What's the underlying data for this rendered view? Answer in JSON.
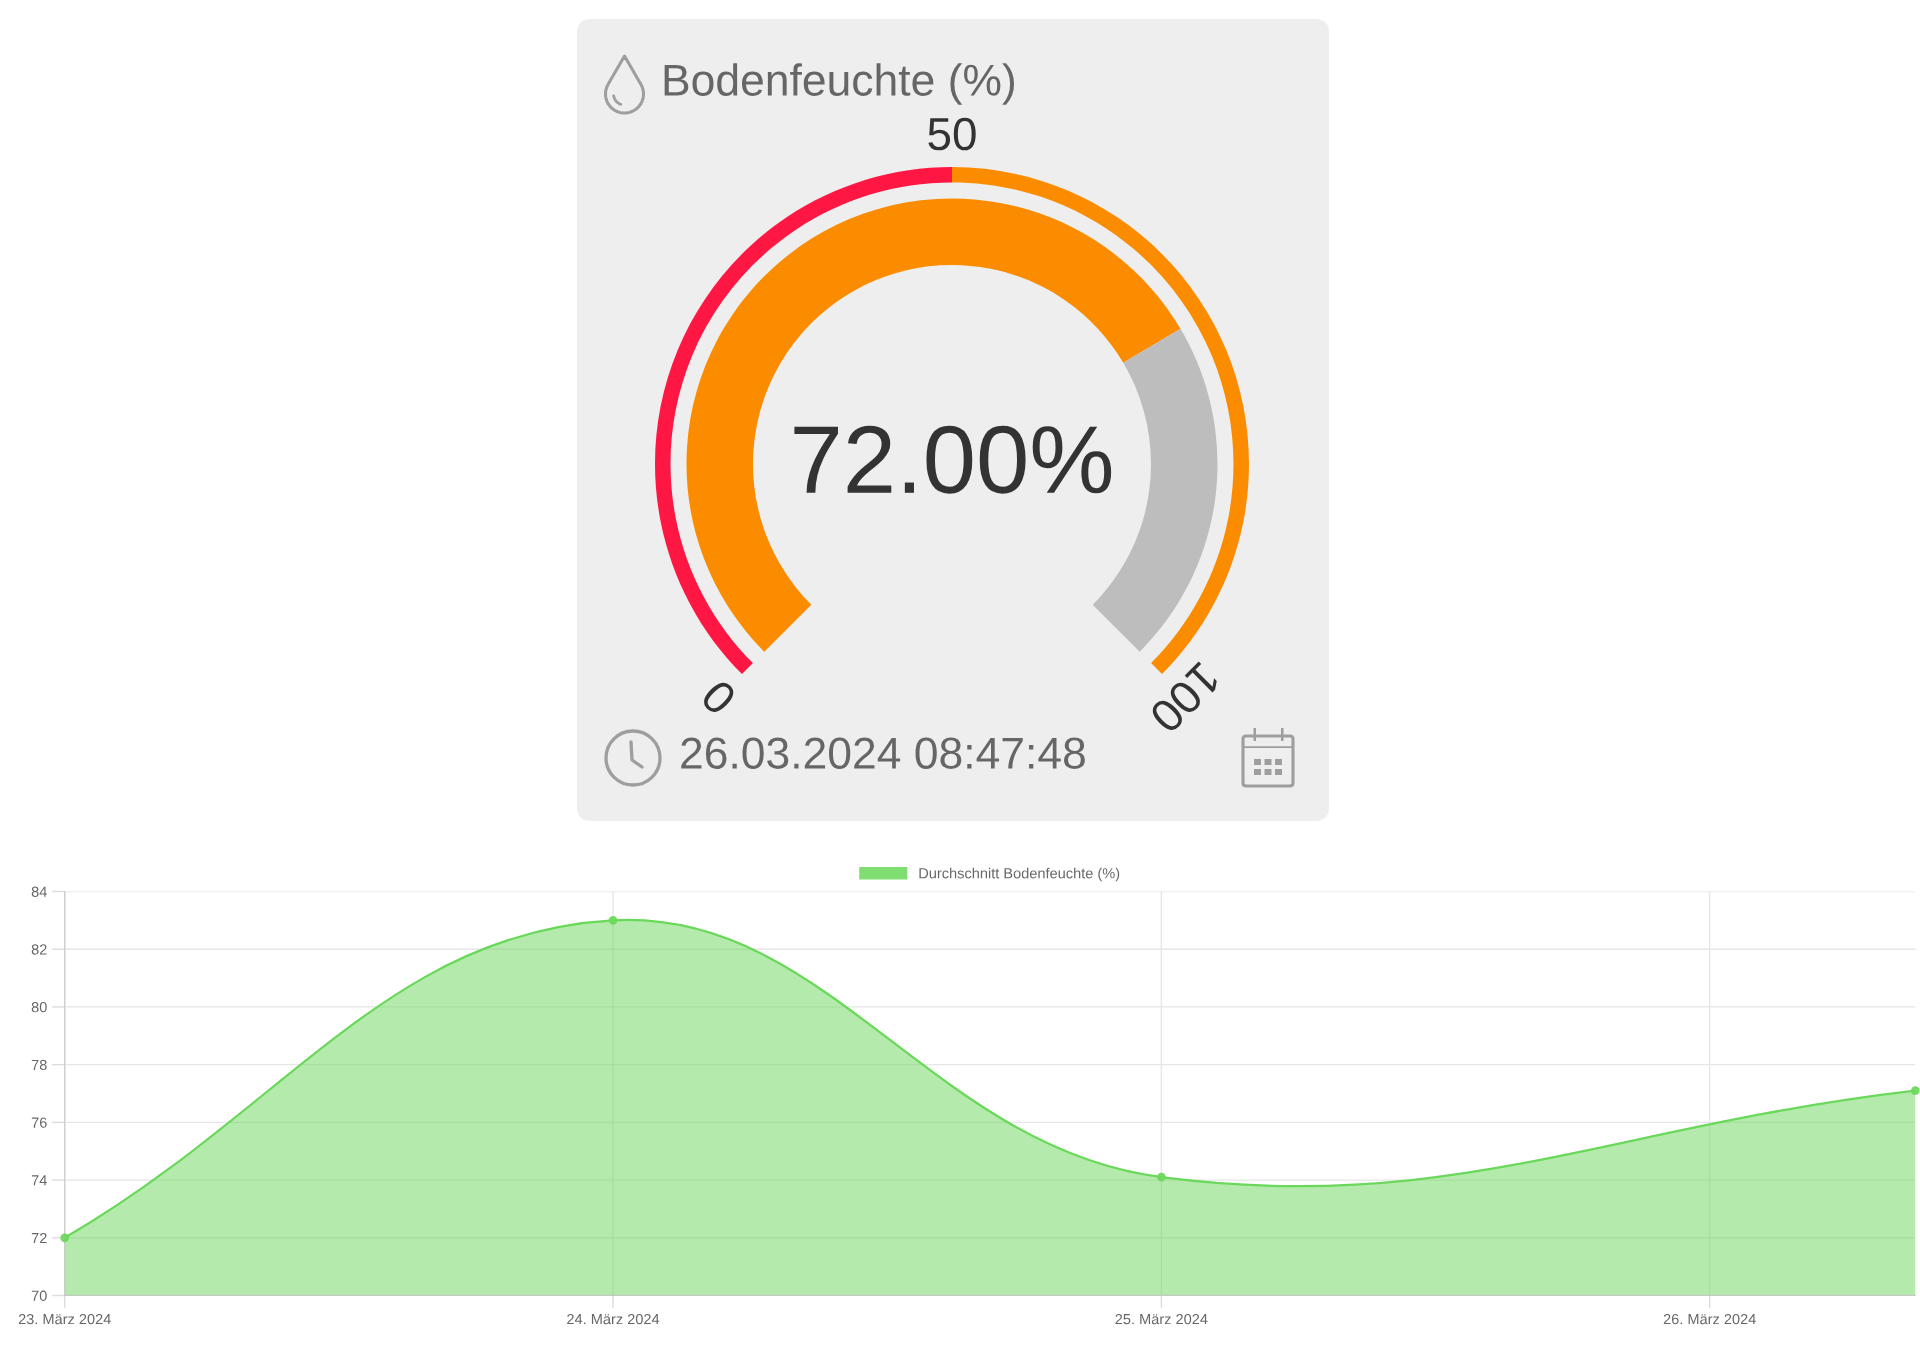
{
  "chart_data": [
    {
      "type": "donut",
      "title": "Bodenfeuchte (%)",
      "categories": [
        null,
        null
      ],
      "series": [
        {
          "values": [
            72,
            28
          ],
          "colors": [
            "#fb8c00",
            "#bdbdbd"
          ],
          "value_labels": [
            "72.00%",
            null
          ]
        },
        {
          "values": [
            50,
            50
          ],
          "colors": [
            "#ff1744",
            "#fb8c00"
          ]
        }
      ],
      "annotations": [
        "0",
        "50",
        "100",
        "26.03.2024 08:47:48"
      ]
    },
    {
      "type": "area",
      "x": [
        "2024-03-23",
        "2024-03-24",
        "2024-03-25",
        "2024-03-26T09:00"
      ],
      "series": [
        {
          "name": "Durchschnitt Bodenfeuchte (%)",
          "color": "#6ad85a",
          "values": [
            72,
            83,
            74.1,
            77.1
          ]
        }
      ],
      "xlim": [
        "2024-03-23",
        "2024-03-26T09:00"
      ],
      "xticks": [
        {
          "value": "2024-03-23",
          "label": "23. März 2024"
        },
        {
          "value": "2024-03-24",
          "label": "24. März 2024"
        },
        {
          "value": "2024-03-25",
          "label": "25. März 2024"
        },
        {
          "value": "2024-03-26",
          "label": "26. März 2024"
        }
      ],
      "ylim": [
        70,
        84
      ],
      "yticks": [
        70,
        72,
        74,
        76,
        78,
        80,
        82,
        84
      ],
      "grid": true,
      "legend": "top",
      "marker": "circle",
      "line_style": "solid"
    }
  ]
}
